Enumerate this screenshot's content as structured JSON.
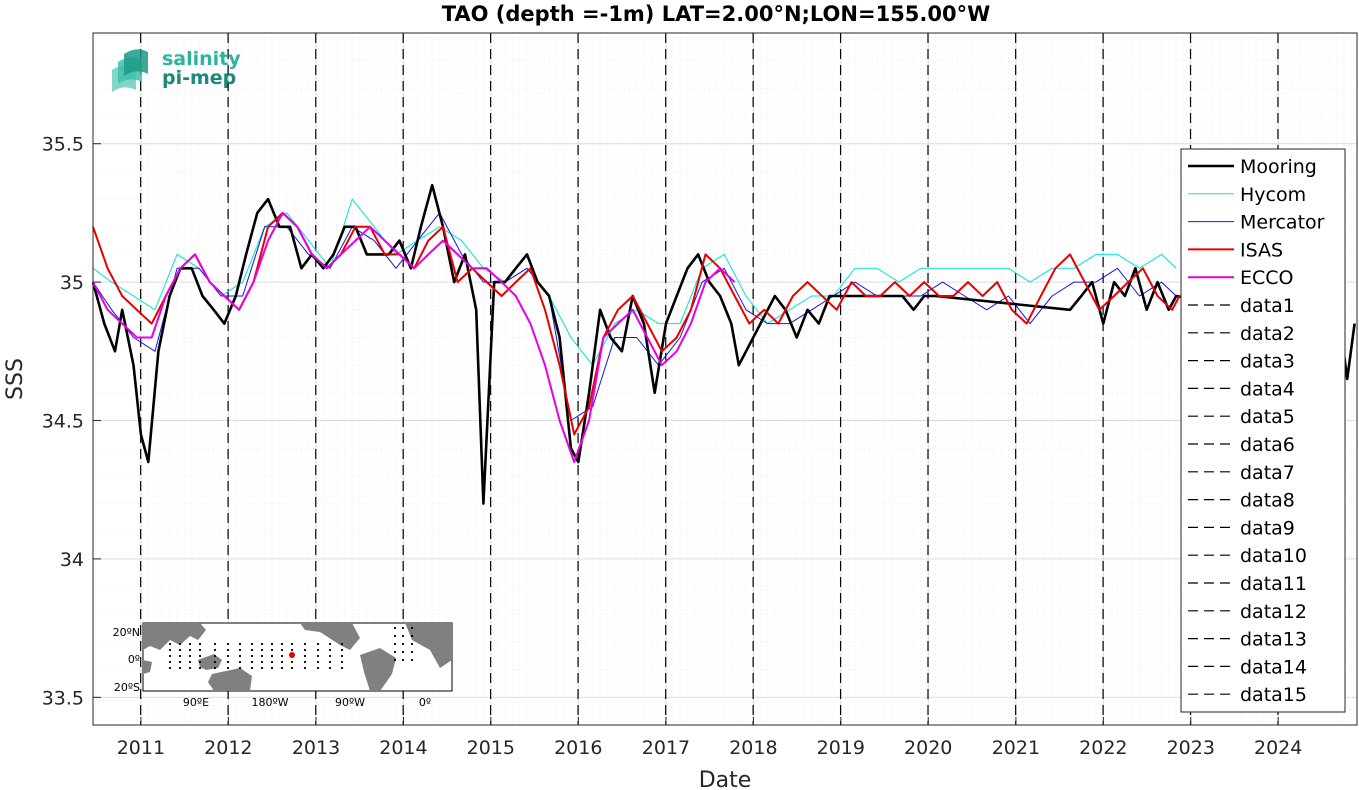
{
  "chart_data": {
    "type": "line",
    "title": "TAO (depth =-1m) LAT=2.00°N;LON=155.00°W",
    "xlabel": "Date",
    "ylabel": "SSS",
    "xlim": [
      "2010-06-15",
      "2024-11-25"
    ],
    "ylim": [
      33.4,
      35.9
    ],
    "grid": true,
    "x_ticks": [
      "2011",
      "2012",
      "2013",
      "2014",
      "2015",
      "2016",
      "2017",
      "2018",
      "2019",
      "2020",
      "2021",
      "2022",
      "2023",
      "2024"
    ],
    "y_ticks": [
      "33.5",
      "34",
      "34.5",
      "35",
      "35.5"
    ],
    "legend_location": "right",
    "colors": {
      "Mooring": "#000000",
      "Hycom": "#00e5d2",
      "Mercator": "#1414e6",
      "ISAS": "#e60000",
      "ECCO": "#e600e6",
      "vline": "#000000"
    },
    "vertical_lines": [
      {
        "name": "data1",
        "x": "2010-12-31"
      },
      {
        "name": "data2",
        "x": "2011-12-31"
      },
      {
        "name": "data3",
        "x": "2012-12-31"
      },
      {
        "name": "data4",
        "x": "2013-12-31"
      },
      {
        "name": "data5",
        "x": "2014-12-31"
      },
      {
        "name": "data6",
        "x": "2015-12-31"
      },
      {
        "name": "data7",
        "x": "2016-12-31"
      },
      {
        "name": "data8",
        "x": "2017-12-31"
      },
      {
        "name": "data9",
        "x": "2018-12-31"
      },
      {
        "name": "data10",
        "x": "2019-12-31"
      },
      {
        "name": "data11",
        "x": "2020-12-31"
      },
      {
        "name": "data12",
        "x": "2021-12-31"
      },
      {
        "name": "data13",
        "x": "2022-12-31"
      },
      {
        "name": "data14",
        "x": "2023-12-31"
      },
      {
        "name": "data15",
        "x": "2024-12-31"
      }
    ],
    "series": [
      {
        "name": "Mooring",
        "x": [
          "2010-06-15",
          "2010-08-01",
          "2010-09-15",
          "2010-10-15",
          "2010-12-01",
          "2011-01-01",
          "2011-02-01",
          "2011-03-15",
          "2011-05-01",
          "2011-06-15",
          "2011-08-01",
          "2011-09-15",
          "2011-11-01",
          "2011-12-15",
          "2012-02-01",
          "2012-03-15",
          "2012-05-01",
          "2012-06-15",
          "2012-08-01",
          "2012-09-15",
          "2012-11-01",
          "2012-12-15",
          "2013-02-01",
          "2013-03-15",
          "2013-05-01",
          "2013-06-15",
          "2013-08-01",
          "2013-09-15",
          "2013-11-01",
          "2013-12-15",
          "2014-02-01",
          "2014-03-15",
          "2014-05-01",
          "2014-06-15",
          "2014-08-01",
          "2014-09-15",
          "2014-11-01",
          "2014-12-01",
          "2015-01-15",
          "2015-03-01",
          "2015-04-15",
          "2015-06-01",
          "2015-07-15",
          "2015-09-01",
          "2015-10-15",
          "2015-12-01",
          "2016-01-01",
          "2016-02-15",
          "2016-04-01",
          "2016-05-15",
          "2016-07-01",
          "2016-08-15",
          "2016-10-01",
          "2016-11-15",
          "2017-01-01",
          "2017-02-15",
          "2017-04-01",
          "2017-05-15",
          "2017-07-01",
          "2017-08-15",
          "2017-10-01",
          "2017-11-01",
          "2018-04-01",
          "2018-05-15",
          "2018-07-01",
          "2018-08-15",
          "2018-10-01",
          "2018-11-15",
          "2019-08-01",
          "2019-09-15",
          "2019-11-01",
          "2019-12-15",
          "2020-02-01",
          "2021-08-15",
          "2021-10-01",
          "2021-11-15",
          "2022-01-01",
          "2022-02-15",
          "2022-04-01",
          "2022-05-15",
          "2022-07-01",
          "2022-08-15",
          "2022-10-01",
          "2022-11-01",
          "2024-09-15",
          "2024-10-15",
          "2024-11-15"
        ],
        "values": [
          35.0,
          34.85,
          34.75,
          34.9,
          34.7,
          34.45,
          34.35,
          34.75,
          34.95,
          35.05,
          35.05,
          34.95,
          34.9,
          34.85,
          34.95,
          35.1,
          35.25,
          35.3,
          35.2,
          35.2,
          35.05,
          35.1,
          35.05,
          35.1,
          35.2,
          35.2,
          35.1,
          35.1,
          35.1,
          35.15,
          35.05,
          35.2,
          35.35,
          35.2,
          35.0,
          35.1,
          34.9,
          34.2,
          35.0,
          35.0,
          35.05,
          35.1,
          35.0,
          34.95,
          34.8,
          34.4,
          34.35,
          34.6,
          34.9,
          34.8,
          34.75,
          34.95,
          34.85,
          34.6,
          34.85,
          34.95,
          35.05,
          35.1,
          35.0,
          34.95,
          34.85,
          34.7,
          34.95,
          34.9,
          34.8,
          34.9,
          34.85,
          34.95,
          34.95,
          34.95,
          34.9,
          34.95,
          34.95,
          34.9,
          34.95,
          35.0,
          34.85,
          35.0,
          34.95,
          35.05,
          34.9,
          35.0,
          34.9,
          34.95,
          34.85,
          34.65,
          34.85
        ]
      },
      {
        "name": "Hycom",
        "x": [
          "2010-06-15",
          "2010-09-01",
          "2010-12-01",
          "2011-03-01",
          "2011-06-01",
          "2011-09-01",
          "2011-12-01",
          "2012-03-01",
          "2012-06-01",
          "2012-09-01",
          "2012-12-01",
          "2013-03-01",
          "2013-06-01",
          "2013-09-01",
          "2013-12-01",
          "2014-03-01",
          "2014-06-01",
          "2014-09-01",
          "2014-12-01",
          "2015-03-01",
          "2015-06-01",
          "2015-09-01",
          "2015-12-01",
          "2016-03-01",
          "2016-06-01",
          "2016-09-01",
          "2016-12-01",
          "2017-03-01",
          "2017-06-01",
          "2017-09-01",
          "2017-12-01",
          "2018-03-01",
          "2018-06-01",
          "2018-09-01",
          "2018-12-01",
          "2019-03-01",
          "2019-06-01",
          "2019-09-01",
          "2019-12-01",
          "2020-03-01",
          "2020-06-01",
          "2020-09-01",
          "2020-12-01",
          "2021-03-01",
          "2021-06-01",
          "2021-09-01",
          "2021-12-01",
          "2022-03-01",
          "2022-06-01",
          "2022-09-01",
          "2022-11-01"
        ],
        "values": [
          35.05,
          35.0,
          34.95,
          34.9,
          35.1,
          35.05,
          34.95,
          35.0,
          35.2,
          35.25,
          35.15,
          35.05,
          35.3,
          35.2,
          35.1,
          35.15,
          35.2,
          35.15,
          35.05,
          35.0,
          35.05,
          34.95,
          34.8,
          34.7,
          34.85,
          34.9,
          34.85,
          34.85,
          35.05,
          35.1,
          34.95,
          34.85,
          34.9,
          34.95,
          34.95,
          35.05,
          35.05,
          35.0,
          35.05,
          35.05,
          35.05,
          35.05,
          35.05,
          35.0,
          35.05,
          35.05,
          35.1,
          35.1,
          35.05,
          35.1,
          35.05
        ]
      },
      {
        "name": "Mercator",
        "x": [
          "2010-06-15",
          "2010-09-01",
          "2010-12-01",
          "2011-03-01",
          "2011-06-01",
          "2011-09-01",
          "2011-12-01",
          "2012-03-01",
          "2012-06-01",
          "2012-09-01",
          "2012-12-01",
          "2013-03-01",
          "2013-06-01",
          "2013-09-01",
          "2013-12-01",
          "2014-03-01",
          "2014-06-01",
          "2014-09-01",
          "2014-12-01",
          "2015-03-01",
          "2015-06-01",
          "2015-09-01",
          "2015-12-01",
          "2016-03-01",
          "2016-06-01",
          "2016-09-01",
          "2016-12-01",
          "2017-03-01",
          "2017-06-01",
          "2017-09-01",
          "2017-12-01",
          "2018-03-01",
          "2018-06-01",
          "2018-09-01",
          "2018-12-01",
          "2019-03-01",
          "2019-06-01",
          "2019-09-01",
          "2019-12-01",
          "2020-03-01",
          "2020-06-01",
          "2020-09-01",
          "2020-12-01",
          "2021-03-01",
          "2021-06-01",
          "2021-09-01",
          "2021-12-01",
          "2022-03-01",
          "2022-06-01",
          "2022-09-01",
          "2022-11-01"
        ],
        "values": [
          35.0,
          34.9,
          34.8,
          34.75,
          35.05,
          35.05,
          34.95,
          34.95,
          35.2,
          35.2,
          35.1,
          35.05,
          35.2,
          35.15,
          35.05,
          35.15,
          35.25,
          35.1,
          35.0,
          35.0,
          35.05,
          34.95,
          34.5,
          34.55,
          34.8,
          34.8,
          34.7,
          34.8,
          35.0,
          35.05,
          34.9,
          34.85,
          34.85,
          34.9,
          34.95,
          35.0,
          34.95,
          34.95,
          34.95,
          35.0,
          34.95,
          34.9,
          34.95,
          34.85,
          34.95,
          35.0,
          35.0,
          35.05,
          34.95,
          35.0,
          34.95
        ]
      },
      {
        "name": "ISAS",
        "x": [
          "2010-06-15",
          "2010-08-15",
          "2010-10-15",
          "2010-12-15",
          "2011-02-15",
          "2011-04-15",
          "2011-06-15",
          "2011-08-15",
          "2011-10-15",
          "2011-12-15",
          "2012-02-15",
          "2012-04-15",
          "2012-06-15",
          "2012-08-15",
          "2012-10-15",
          "2012-12-15",
          "2013-02-15",
          "2013-04-15",
          "2013-06-15",
          "2013-08-15",
          "2013-10-15",
          "2013-12-15",
          "2014-02-15",
          "2014-04-15",
          "2014-06-15",
          "2014-08-15",
          "2014-10-15",
          "2014-12-15",
          "2015-02-15",
          "2015-04-15",
          "2015-06-15",
          "2015-08-15",
          "2015-10-15",
          "2015-12-15",
          "2016-02-15",
          "2016-04-15",
          "2016-06-15",
          "2016-08-15",
          "2016-10-15",
          "2016-12-15",
          "2017-02-15",
          "2017-04-15",
          "2017-06-15",
          "2017-08-15",
          "2017-10-15",
          "2017-12-15",
          "2018-02-15",
          "2018-04-15",
          "2018-06-15",
          "2018-08-15",
          "2018-10-15",
          "2018-12-15",
          "2019-02-15",
          "2019-04-15",
          "2019-06-15",
          "2019-08-15",
          "2019-10-15",
          "2019-12-15",
          "2020-02-15",
          "2020-04-15",
          "2020-06-15",
          "2020-08-15",
          "2020-10-15",
          "2020-12-15",
          "2021-02-15",
          "2021-04-15",
          "2021-06-15",
          "2021-08-15",
          "2021-10-15",
          "2021-12-15",
          "2022-02-15",
          "2022-04-15",
          "2022-06-15",
          "2022-08-15",
          "2022-10-15",
          "2022-11-15"
        ],
        "values": [
          35.2,
          35.05,
          34.95,
          34.9,
          34.85,
          34.95,
          35.05,
          35.1,
          35.0,
          34.95,
          34.9,
          35.0,
          35.2,
          35.25,
          35.2,
          35.1,
          35.05,
          35.1,
          35.2,
          35.2,
          35.1,
          35.1,
          35.05,
          35.15,
          35.2,
          35.0,
          35.05,
          35.0,
          34.95,
          35.0,
          35.05,
          34.9,
          34.7,
          34.45,
          34.55,
          34.8,
          34.9,
          34.95,
          34.85,
          34.75,
          34.8,
          34.9,
          35.1,
          35.05,
          34.95,
          34.85,
          34.9,
          34.85,
          34.95,
          35.0,
          34.95,
          34.9,
          35.0,
          34.95,
          34.95,
          35.0,
          34.95,
          35.0,
          34.95,
          34.95,
          35.0,
          34.95,
          35.0,
          34.9,
          34.85,
          34.95,
          35.05,
          35.1,
          35.0,
          34.9,
          34.95,
          35.0,
          35.05,
          34.95,
          34.9,
          34.95
        ]
      },
      {
        "name": "ECCO",
        "x": [
          "2010-06-15",
          "2010-08-15",
          "2010-10-15",
          "2010-12-15",
          "2011-02-15",
          "2011-04-15",
          "2011-06-15",
          "2011-08-15",
          "2011-10-15",
          "2011-12-15",
          "2012-02-15",
          "2012-04-15",
          "2012-06-15",
          "2012-08-15",
          "2012-10-15",
          "2012-12-15",
          "2013-02-15",
          "2013-04-15",
          "2013-06-15",
          "2013-08-15",
          "2013-10-15",
          "2013-12-15",
          "2014-02-15",
          "2014-04-15",
          "2014-06-15",
          "2014-08-15",
          "2014-10-15",
          "2014-12-15",
          "2015-02-15",
          "2015-04-15",
          "2015-06-15",
          "2015-08-15",
          "2015-10-15",
          "2015-12-15",
          "2016-02-15",
          "2016-04-15",
          "2016-06-15",
          "2016-08-15",
          "2016-10-15",
          "2016-12-15",
          "2017-02-15",
          "2017-04-15",
          "2017-06-15",
          "2017-08-15",
          "2017-10-15"
        ],
        "values": [
          35.0,
          34.9,
          34.85,
          34.8,
          34.8,
          34.95,
          35.05,
          35.1,
          35.0,
          34.95,
          34.9,
          35.0,
          35.15,
          35.25,
          35.2,
          35.1,
          35.05,
          35.1,
          35.15,
          35.2,
          35.15,
          35.1,
          35.05,
          35.1,
          35.15,
          35.1,
          35.05,
          35.05,
          35.0,
          34.95,
          34.85,
          34.7,
          34.5,
          34.35,
          34.5,
          34.8,
          34.85,
          34.9,
          34.8,
          34.7,
          34.75,
          34.85,
          35.0,
          35.05,
          35.0
        ]
      }
    ]
  },
  "logo": {
    "line1": "salinity",
    "line2": "pi-mep"
  },
  "inset_map": {
    "lat_labels": [
      "20ºN",
      "0º",
      "20ºS"
    ],
    "lon_labels": [
      "90ºE",
      "180ºW",
      "90ºW",
      "0º"
    ]
  }
}
